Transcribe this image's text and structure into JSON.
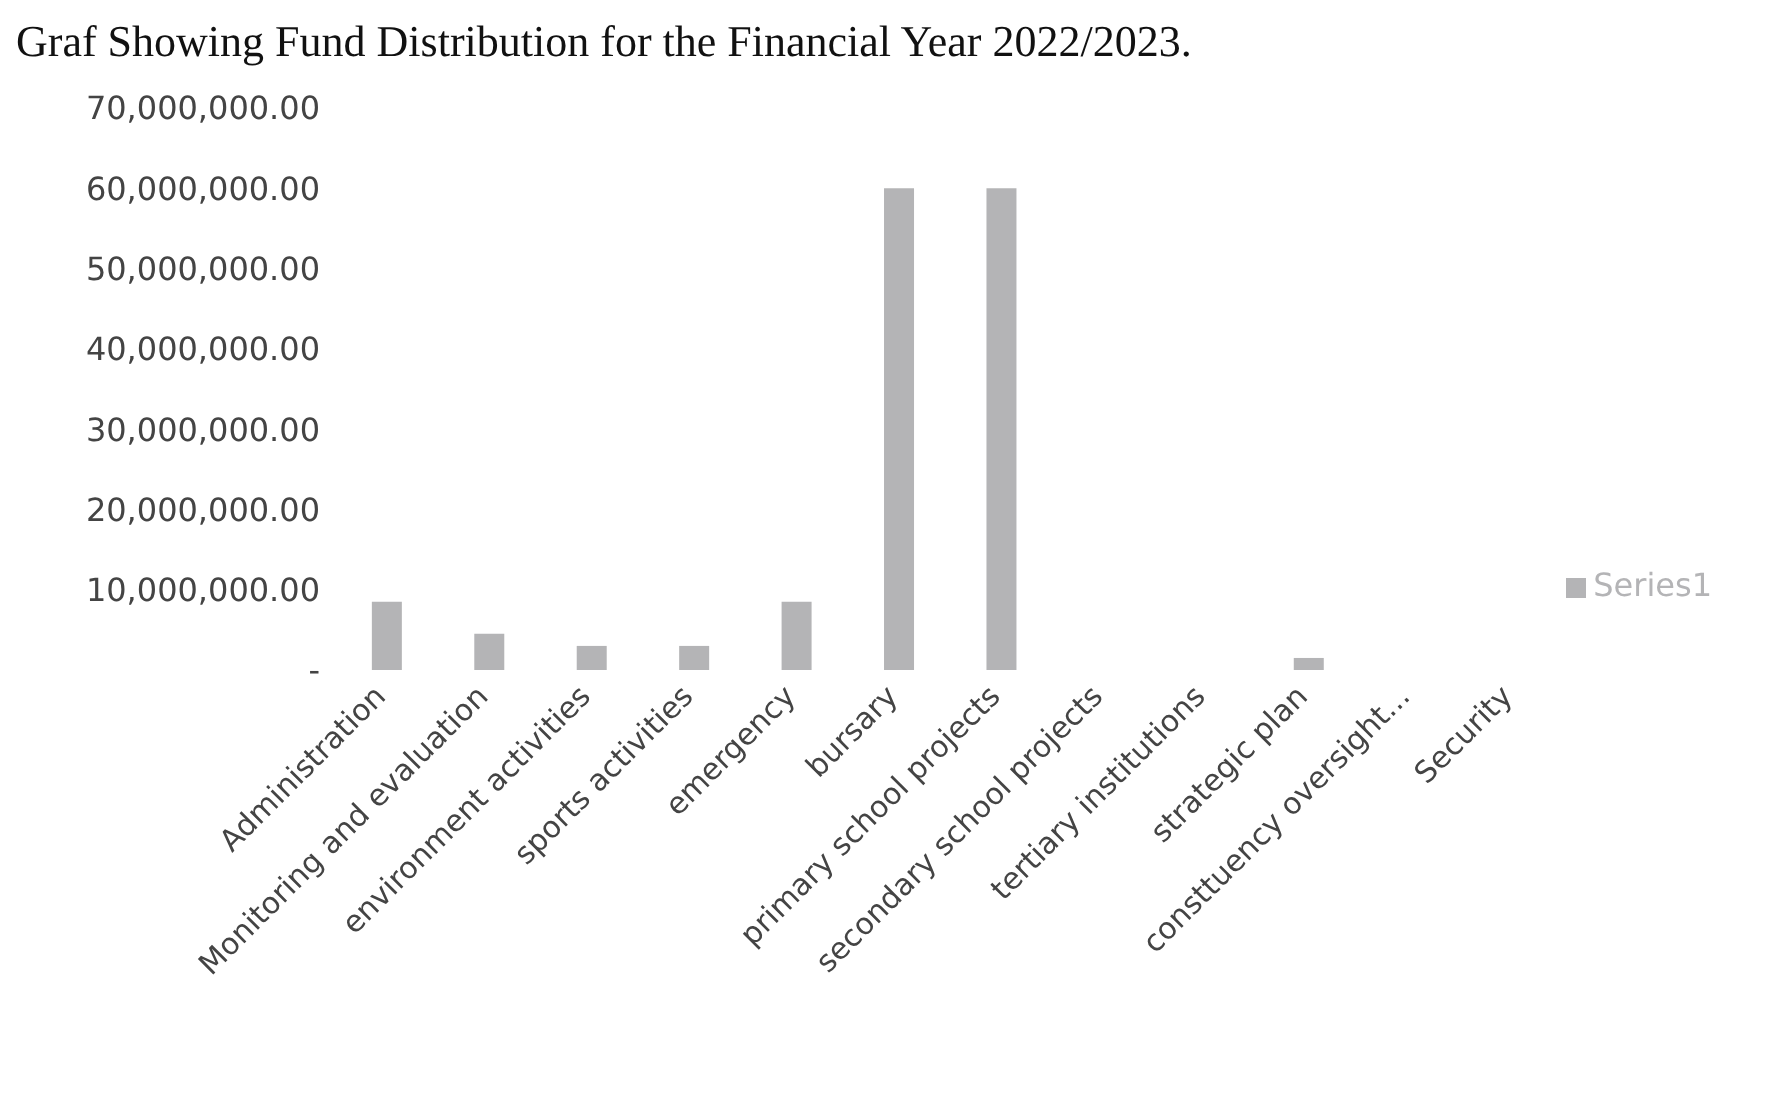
{
  "chart_data": {
    "type": "bar",
    "title": "Graf Showing Fund Distribution for the Financial Year 2022/2023.",
    "categories": [
      "Administration",
      "Monitoring and evaluation",
      "environment activities",
      "sports activities",
      "emergency",
      "bursary",
      "primary school projects",
      "secondary school projects",
      "tertiary institutions",
      "strategic plan",
      "consttuency oversight...",
      "Security"
    ],
    "series": [
      {
        "name": "Series1",
        "color": "#b4b4b6",
        "values": [
          8500000,
          4500000,
          3000000,
          3000000,
          8500000,
          60000000,
          60000000,
          0,
          0,
          1500000,
          0,
          0
        ]
      }
    ],
    "ylim": [
      0,
      70000000
    ],
    "yticks": [
      {
        "value": 0,
        "label": "-"
      },
      {
        "value": 10000000,
        "label": "10,000,000.00"
      },
      {
        "value": 20000000,
        "label": "20,000,000.00"
      },
      {
        "value": 30000000,
        "label": "30,000,000.00"
      },
      {
        "value": 40000000,
        "label": "40,000,000.00"
      },
      {
        "value": 50000000,
        "label": "50,000,000.00"
      },
      {
        "value": 60000000,
        "label": "60,000,000.00"
      },
      {
        "value": 70000000,
        "label": "70,000,000.00"
      }
    ],
    "grid": false,
    "legend": "right"
  }
}
